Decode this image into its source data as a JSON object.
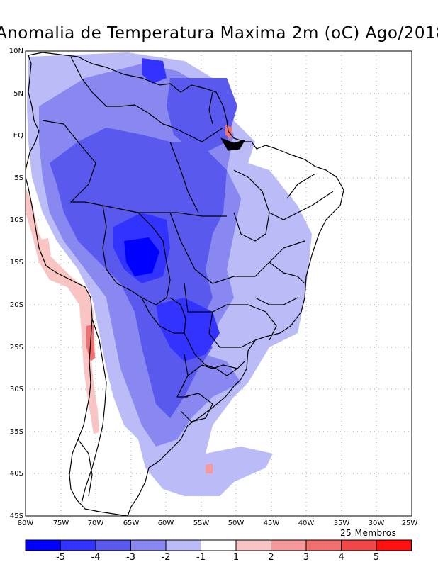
{
  "title": "Anomalia de Temperatura Maxima 2m (oC) Ago/2018",
  "footnote": "25 Membros",
  "map": {
    "lat_labels": [
      "10N",
      "5N",
      "EQ",
      "5S",
      "10S",
      "15S",
      "20S",
      "25S",
      "30S",
      "35S",
      "40S",
      "45S"
    ],
    "lon_labels": [
      "80W",
      "75W",
      "70W",
      "65W",
      "60W",
      "55W",
      "50W",
      "45W",
      "40W",
      "35W",
      "30W",
      "25W"
    ]
  },
  "legend": {
    "colors": [
      "#0000ff",
      "#3333ff",
      "#5959ee",
      "#8888f0",
      "#bbbbf8",
      "#ffffff",
      "#f8c4c4",
      "#f49a9a",
      "#f07070",
      "#f04848",
      "#ff1010"
    ],
    "labels": [
      "-5",
      "-4",
      "-3",
      "-2",
      "-1",
      "1",
      "2",
      "3",
      "4",
      "5"
    ]
  }
}
